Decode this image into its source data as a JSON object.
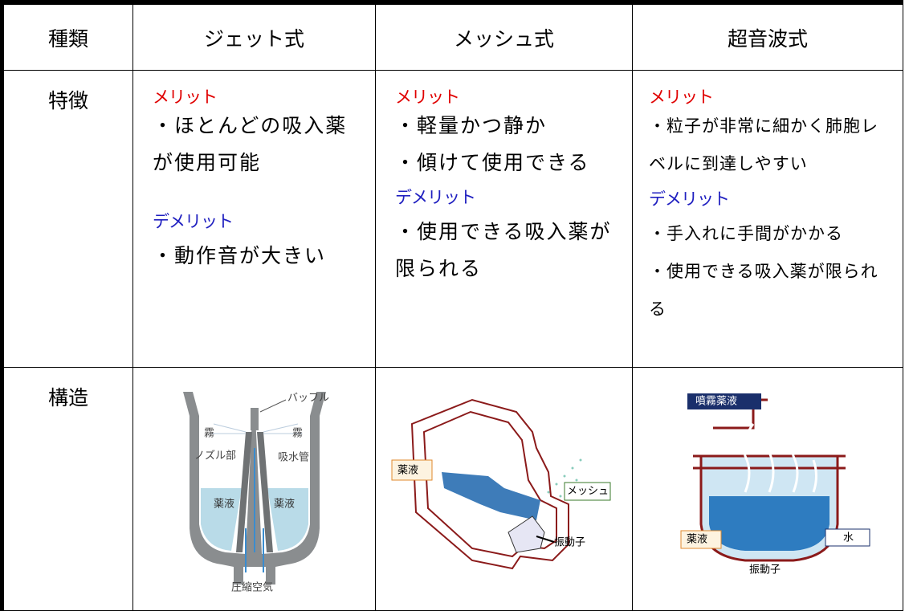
{
  "table": {
    "header": [
      "種類",
      "ジェット式",
      "メッシュ式",
      "超音波式"
    ],
    "features": {
      "label": "特徴",
      "cells": [
        {
          "merit_label": "メリット",
          "merits": [
            "・ほとんどの吸入薬が使用可能"
          ],
          "demerit_label": "デメリット",
          "demerits": [
            "・動作音が大きい"
          ]
        },
        {
          "merit_label": "メリット",
          "merits": [
            "・軽量かつ静か",
            "・傾けて使用できる"
          ],
          "demerit_label": "デメリット",
          "demerits": [
            "・使用できる吸入薬が限られる"
          ]
        },
        {
          "merit_label": "メリット",
          "merits": [
            "・粒子が非常に細かく肺胞レベルに到達しやすい"
          ],
          "demerit_label": "デメリット",
          "demerits": [
            "・手入れに手間がかかる",
            "・使用できる吸入薬が限られる"
          ]
        }
      ]
    },
    "structure": {
      "label": "構造",
      "diagrams": [
        {
          "labels": [
            "バッフル",
            "霧",
            "霧",
            "ノズル部",
            "吸水管",
            "薬液",
            "薬液",
            "圧縮空気"
          ]
        },
        {
          "labels": [
            "薬液",
            "メッシュ",
            "振動子"
          ]
        },
        {
          "labels": [
            "噴霧薬液",
            "薬液",
            "水",
            "振動子"
          ]
        }
      ]
    }
  }
}
